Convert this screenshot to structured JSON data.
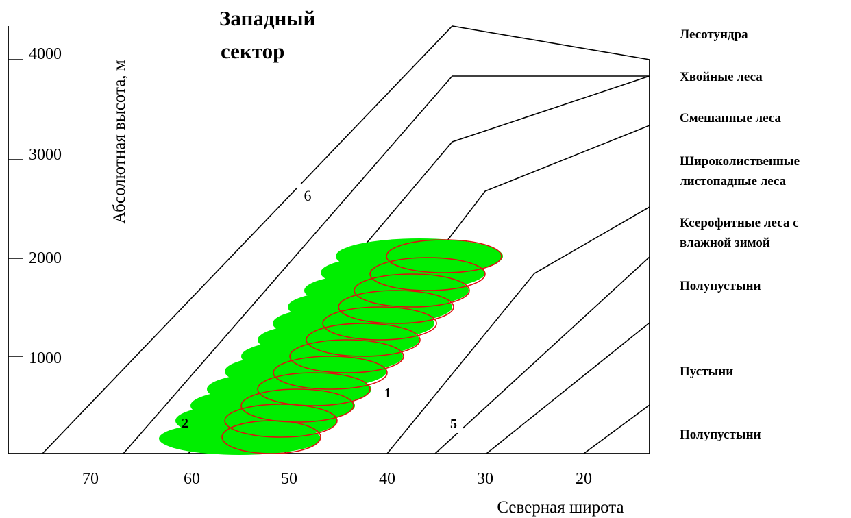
{
  "title_lines": [
    "Западный",
    "сектор"
  ],
  "x_axis": {
    "label": "Северная широта",
    "ticks": [
      "70",
      "60",
      "50",
      "40",
      "30",
      "20"
    ]
  },
  "y_axis": {
    "label": "Абсолютная высота, м",
    "ticks": [
      "4000",
      "3000",
      "2000",
      "1000"
    ]
  },
  "zones": [
    {
      "lines": [
        "Лесотундра"
      ]
    },
    {
      "lines": [
        "Хвойные леса"
      ]
    },
    {
      "lines": [
        "Смешанные леса"
      ]
    },
    {
      "lines": [
        "Широколиственные",
        "листопадные леса"
      ]
    },
    {
      "lines": [
        "Ксерофитные леса с",
        "влажной зимой"
      ]
    },
    {
      "lines": [
        "Полупустыни"
      ]
    },
    {
      "lines": [
        "Пустыни"
      ]
    },
    {
      "lines": [
        "Полупустыни"
      ]
    }
  ],
  "markers": [
    "6",
    "2",
    "1",
    "5"
  ],
  "colors": {
    "fill_ellipses": "#00ee00",
    "outline_ellipses": "#dd1111",
    "lines": "#000000"
  }
}
